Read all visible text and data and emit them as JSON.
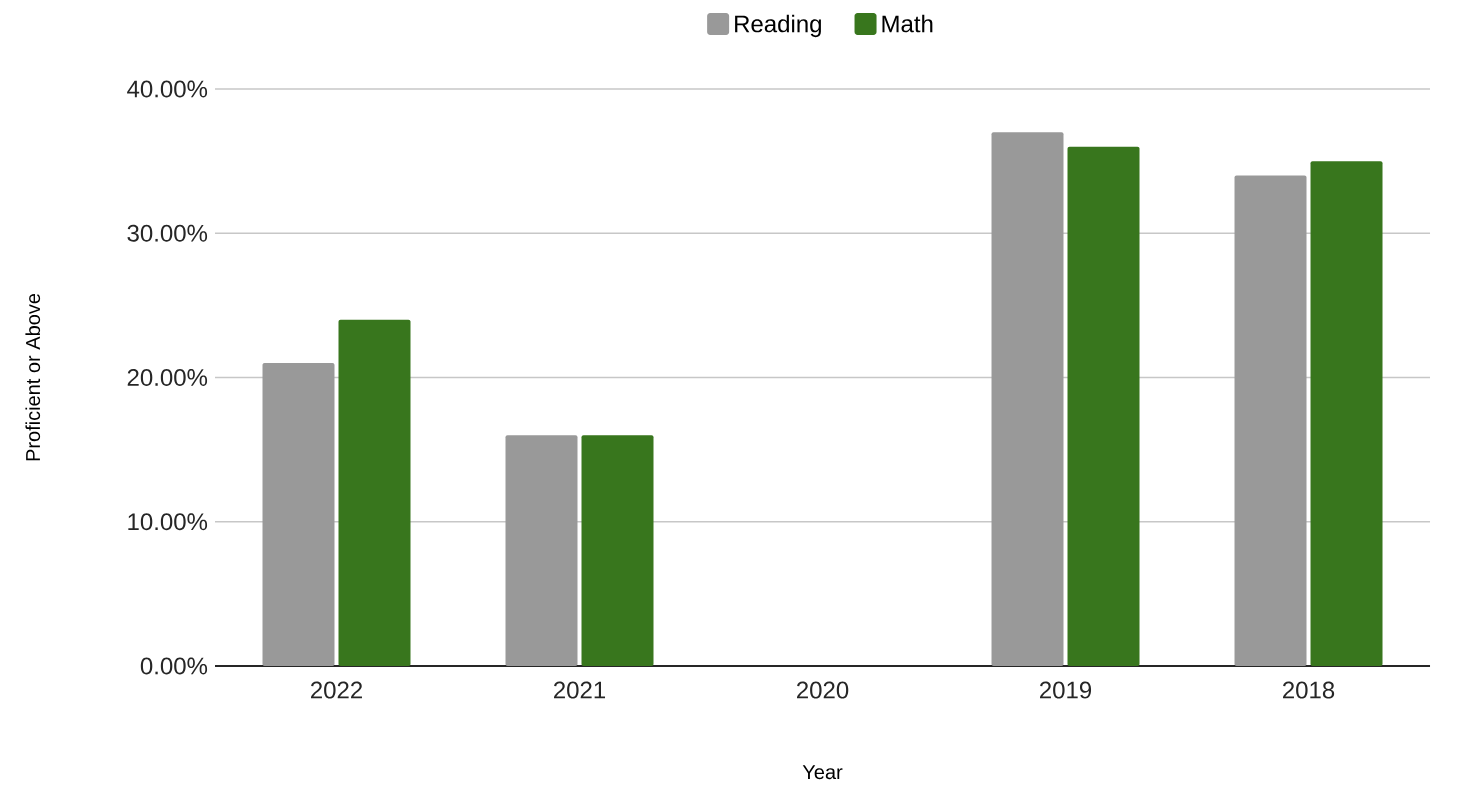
{
  "chart_data": {
    "type": "bar",
    "xlabel": "Year",
    "ylabel": "Proficient or Above",
    "categories": [
      "2022",
      "2021",
      "2020",
      "2019",
      "2018"
    ],
    "series": [
      {
        "name": "Reading",
        "color": "#999999",
        "values": [
          21,
          16,
          null,
          37,
          34
        ]
      },
      {
        "name": "Math",
        "color": "#38761d",
        "values": [
          24,
          16,
          null,
          36,
          35
        ]
      }
    ],
    "ylim": [
      0,
      40
    ],
    "yticks": [
      {
        "value": 0,
        "label": "0.00%"
      },
      {
        "value": 10,
        "label": "10.00%"
      },
      {
        "value": 20,
        "label": "20.00%"
      },
      {
        "value": 30,
        "label": "30.00%"
      },
      {
        "value": 40,
        "label": "40.00%"
      }
    ],
    "grid": "y",
    "legend": "top"
  }
}
